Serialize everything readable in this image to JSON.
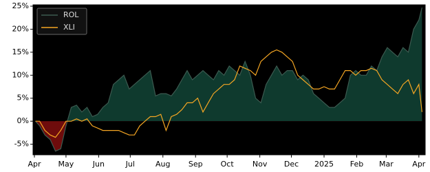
{
  "chart_data": {
    "type": "line",
    "x": [
      1,
      5,
      10,
      15,
      20,
      25,
      30,
      35,
      40,
      45,
      50,
      55,
      60,
      65,
      70,
      75,
      80,
      85,
      90,
      95,
      100,
      105,
      110,
      115,
      120,
      125,
      130,
      135,
      140,
      145,
      150,
      155,
      160,
      165,
      170,
      175,
      180,
      185,
      190,
      195,
      200,
      205,
      210,
      215,
      220,
      225,
      230,
      235,
      240,
      245,
      250,
      255,
      260,
      265,
      270,
      275,
      280,
      285,
      290,
      295,
      300,
      305,
      310,
      315,
      320,
      325,
      330,
      335,
      340,
      345,
      350,
      355,
      360,
      365,
      368
    ],
    "series": [
      {
        "name": "ROL",
        "color": "#3c5a50",
        "fill_positive": "#0f3a2e",
        "fill_negative": "#6e0c0c",
        "values": [
          0,
          -1,
          -3,
          -4,
          -6.5,
          -6,
          -1,
          3,
          3.5,
          2,
          3,
          1,
          1.5,
          3,
          4,
          8,
          9,
          10,
          7,
          8,
          9,
          10,
          11,
          5.5,
          6,
          6,
          5.5,
          7,
          9,
          11,
          9,
          10,
          11,
          10,
          9,
          11,
          10,
          12,
          11,
          10,
          13,
          10,
          5,
          4,
          8,
          10,
          12,
          10,
          11,
          11,
          9,
          10,
          9,
          6,
          5,
          4,
          3,
          3,
          4,
          5,
          10,
          11,
          10,
          10,
          12,
          11,
          14,
          16,
          15,
          14,
          16,
          15,
          20,
          22,
          24.7
        ]
      },
      {
        "name": "XLI",
        "color": "#f5a623",
        "values": [
          0,
          0,
          -2,
          -3,
          -3.5,
          -2,
          0,
          0,
          0.5,
          0,
          0.5,
          -1,
          -1.5,
          -2,
          -2,
          -2,
          -2,
          -2.5,
          -3,
          -3,
          -1,
          0,
          1,
          1,
          1.5,
          -2,
          1,
          1.5,
          2.5,
          4,
          4,
          5,
          2,
          4,
          6,
          7,
          8,
          8,
          9,
          12,
          11.5,
          11,
          10,
          13,
          14,
          15,
          15.5,
          15,
          14,
          13,
          10,
          9,
          8,
          7,
          7,
          7.5,
          7,
          7,
          9,
          11,
          11,
          10,
          11,
          11,
          11.5,
          11,
          9,
          8,
          7,
          6,
          8,
          9,
          6,
          8,
          2
        ]
      }
    ],
    "xlim": [
      -1.3,
      371
    ],
    "xticks": [
      {
        "value": 0,
        "label": "Apr"
      },
      {
        "value": 30,
        "label": "May"
      },
      {
        "value": 61,
        "label": "Jun"
      },
      {
        "value": 91,
        "label": "Jul"
      },
      {
        "value": 122,
        "label": "Aug"
      },
      {
        "value": 153,
        "label": "Sep"
      },
      {
        "value": 183,
        "label": "Oct"
      },
      {
        "value": 214,
        "label": "Nov"
      },
      {
        "value": 244,
        "label": "Dec"
      },
      {
        "value": 275,
        "label": "2025"
      },
      {
        "value": 306,
        "label": "Feb"
      },
      {
        "value": 334,
        "label": "Mar"
      },
      {
        "value": 365,
        "label": "Apr"
      }
    ],
    "ylim": [
      -7.3,
      25.3
    ],
    "yticks": [
      {
        "value": -5,
        "label": "-5%"
      },
      {
        "value": 0,
        "label": "0%"
      },
      {
        "value": 5,
        "label": "5%"
      },
      {
        "value": 10,
        "label": "10%"
      },
      {
        "value": 15,
        "label": "15%"
      },
      {
        "value": 20,
        "label": "20%"
      },
      {
        "value": 25,
        "label": "25%"
      }
    ],
    "legend": "upper left"
  }
}
